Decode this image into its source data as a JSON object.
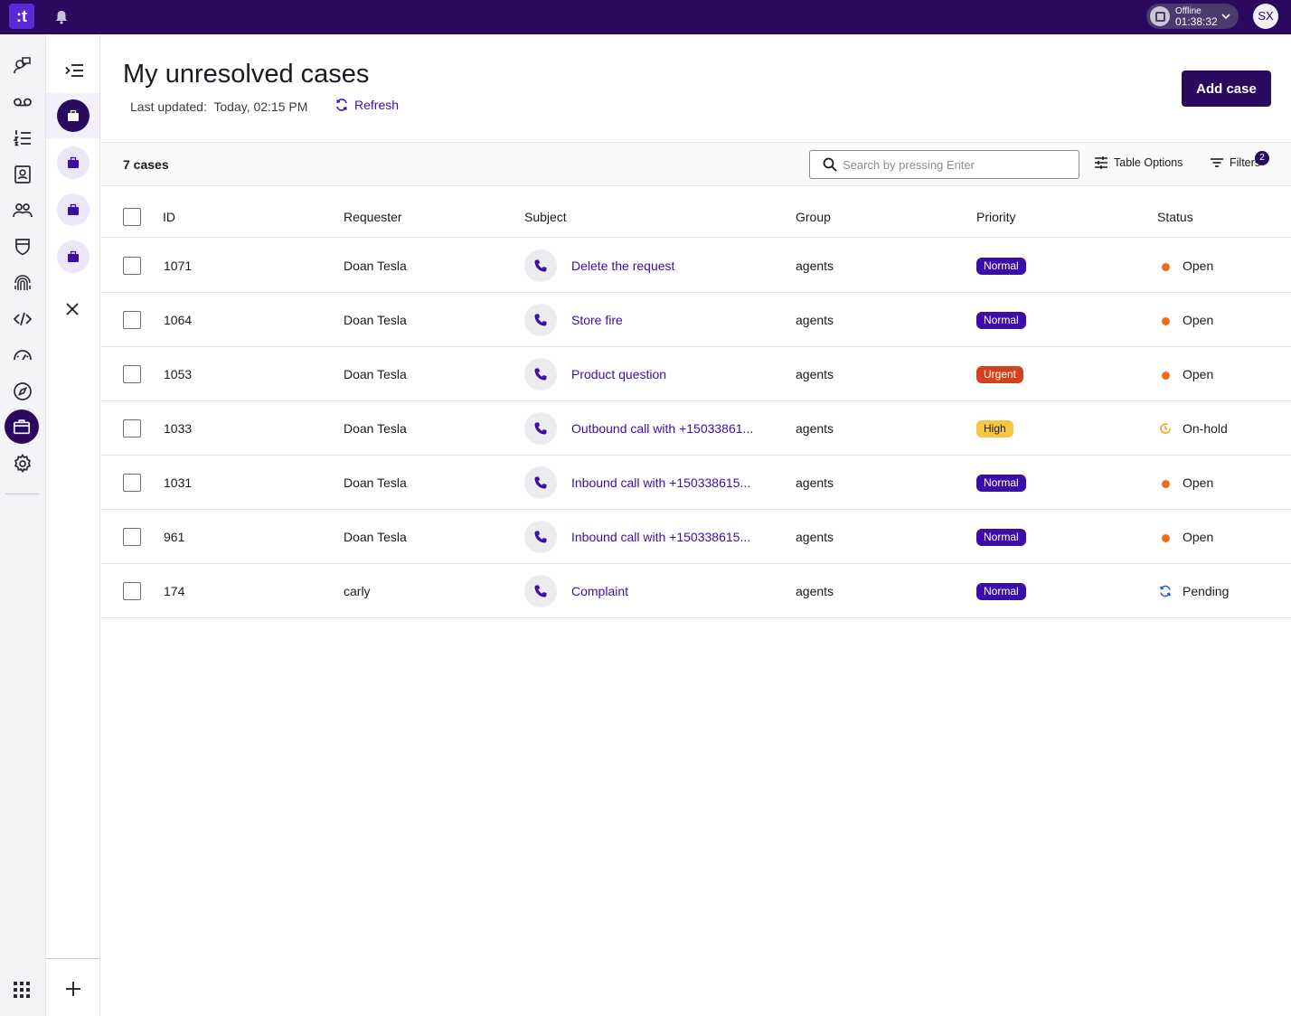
{
  "topbar": {
    "logo_text": ":t",
    "status_label": "Offline",
    "status_timer": "01:38:32",
    "avatar_initials": "SX"
  },
  "rail": {
    "items": [
      {
        "icon": "agent-chat-icon"
      },
      {
        "icon": "voicemail-icon"
      },
      {
        "icon": "ordered-list-icon"
      },
      {
        "icon": "contacts-book-icon"
      },
      {
        "icon": "users-group-icon"
      },
      {
        "icon": "shield-icon"
      },
      {
        "icon": "fingerprint-icon"
      },
      {
        "icon": "code-icon"
      },
      {
        "icon": "speedometer-icon"
      },
      {
        "icon": "compass-icon"
      },
      {
        "icon": "briefcase-icon",
        "active": true
      },
      {
        "icon": "gear-icon"
      }
    ]
  },
  "main": {
    "title": "My unresolved cases",
    "last_updated_label": "Last updated:",
    "last_updated_value": "Today, 02:15 PM",
    "refresh_label": "Refresh",
    "add_case_label": "Add case"
  },
  "toolbar": {
    "count_label": "7 cases",
    "search_placeholder": "Search by pressing Enter",
    "table_options_label": "Table Options",
    "filters_label": "Filters",
    "filters_count": "2"
  },
  "table": {
    "columns": [
      "ID",
      "Requester",
      "Subject",
      "Group",
      "Priority",
      "Status"
    ],
    "rows": [
      {
        "id": "1071",
        "requester": "Doan Tesla",
        "subject": "Delete the request",
        "group": "agents",
        "priority": "Normal",
        "status": "Open"
      },
      {
        "id": "1064",
        "requester": "Doan Tesla",
        "subject": "Store fire",
        "group": "agents",
        "priority": "Normal",
        "status": "Open"
      },
      {
        "id": "1053",
        "requester": "Doan Tesla",
        "subject": "Product question",
        "group": "agents",
        "priority": "Urgent",
        "status": "Open"
      },
      {
        "id": "1033",
        "requester": "Doan Tesla",
        "subject": "Outbound call with +15033861...",
        "group": "agents",
        "priority": "High",
        "status": "On-hold"
      },
      {
        "id": "1031",
        "requester": "Doan Tesla",
        "subject": "Inbound call with +150338615...",
        "group": "agents",
        "priority": "Normal",
        "status": "Open"
      },
      {
        "id": "961",
        "requester": "Doan Tesla",
        "subject": "Inbound call with +150338615...",
        "group": "agents",
        "priority": "Normal",
        "status": "Open"
      },
      {
        "id": "174",
        "requester": "carly",
        "subject": "Complaint",
        "group": "agents",
        "priority": "Normal",
        "status": "Pending"
      }
    ]
  },
  "colors": {
    "brand": "#2a0a5e",
    "link": "#3d0da8",
    "priority_normal": "#3d0da8",
    "priority_urgent": "#d1431f",
    "priority_high": "#f6c544",
    "status_open": "#f26a1b",
    "status_onhold": "#f3a712",
    "status_pending": "#1f5fd6"
  }
}
